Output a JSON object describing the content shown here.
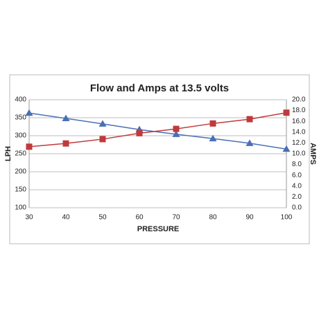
{
  "chart_data": {
    "type": "line",
    "title": "Flow and Amps at 13.5 volts",
    "x_label": "PRESSURE",
    "y_label": "LPH",
    "y2_label": "AMPS",
    "x": [
      30,
      40,
      50,
      60,
      70,
      80,
      90,
      100
    ],
    "xlim": [
      30,
      100
    ],
    "xticks": [
      30,
      40,
      50,
      60,
      70,
      80,
      90,
      100
    ],
    "ylim": [
      100,
      400
    ],
    "yticks": [
      100,
      150,
      200,
      250,
      300,
      350,
      400
    ],
    "y2lim": [
      0,
      20
    ],
    "y2ticks": [
      {
        "value": 0,
        "label": "0.0"
      },
      {
        "value": 2,
        "label": "2.0"
      },
      {
        "value": 4,
        "label": "4.0"
      },
      {
        "value": 6,
        "label": "6.0"
      },
      {
        "value": 8,
        "label": "8.0"
      },
      {
        "value": 10,
        "label": "10.0"
      },
      {
        "value": 12,
        "label": "12.0"
      },
      {
        "value": 14,
        "label": "14.0"
      },
      {
        "value": 16,
        "label": "16.0"
      },
      {
        "value": 18,
        "label": "18.0"
      },
      {
        "value": 20,
        "label": "20.0"
      }
    ],
    "grid": true,
    "series": [
      {
        "color": "#4a6fb5",
        "marker": "triangle",
        "values": [
          363,
          348,
          333,
          317,
          304,
          292,
          279,
          263
        ]
      },
      {
        "color": "#c0393b",
        "marker": "square",
        "axis": "y2",
        "values": [
          11.3,
          11.9,
          12.7,
          13.8,
          14.6,
          15.6,
          16.4,
          17.6
        ]
      }
    ]
  }
}
